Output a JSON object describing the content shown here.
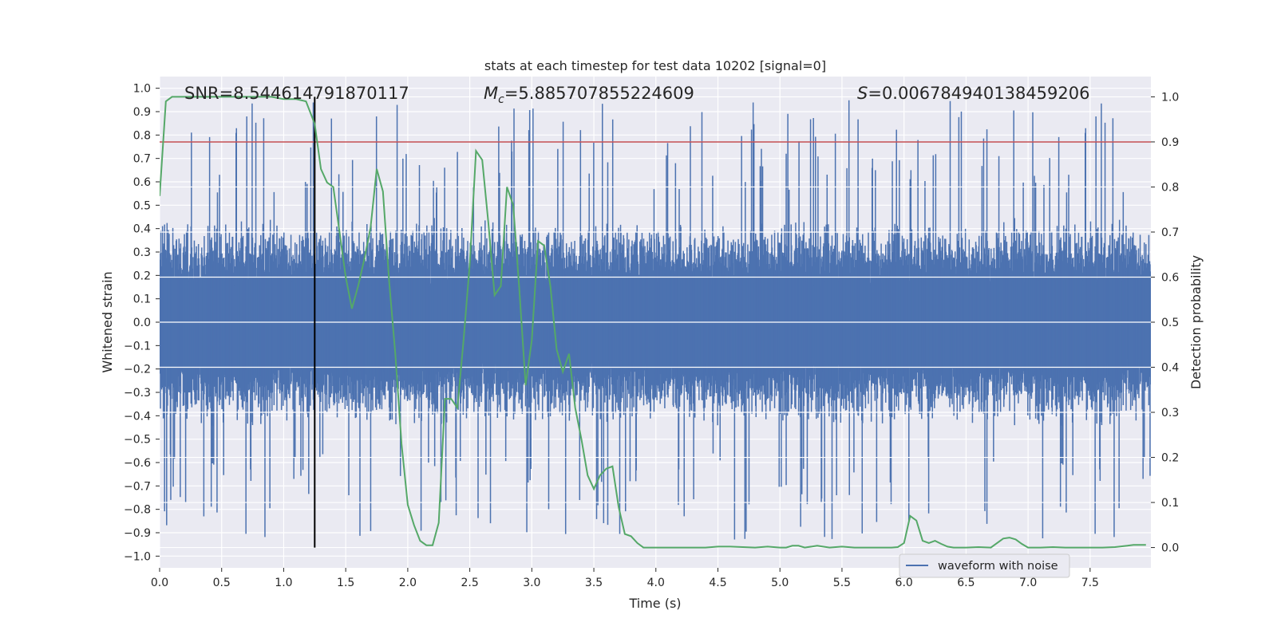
{
  "chart_data": {
    "type": "line",
    "title": "stats at each timestep for test data 10202 [signal=0]",
    "xlabel": "Time (s)",
    "ylabel": "Whitened strain",
    "y2label": "Detection probability",
    "xlim": [
      0,
      7.99
    ],
    "ylim": [
      -1.05,
      1.05
    ],
    "y2lim": [
      -0.045,
      1.045
    ],
    "x_ticks": [
      "0.0",
      "0.5",
      "1.0",
      "1.5",
      "2.0",
      "2.5",
      "3.0",
      "3.5",
      "4.0",
      "4.5",
      "5.0",
      "5.5",
      "6.0",
      "6.5",
      "7.0",
      "7.5"
    ],
    "y_ticks": [
      "1.0",
      "0.9",
      "0.8",
      "0.7",
      "0.6",
      "0.5",
      "0.4",
      "0.3",
      "0.2",
      "0.1",
      "0.0",
      "−0.1",
      "−0.2",
      "−0.3",
      "−0.4",
      "−0.5",
      "−0.6",
      "−0.7",
      "−0.8",
      "−0.9",
      "−1.0"
    ],
    "y2_ticks": [
      "1.0",
      "0.9",
      "0.8",
      "0.7",
      "0.6",
      "0.5",
      "0.4",
      "0.3",
      "0.2",
      "0.1",
      "0.0"
    ],
    "grid": true,
    "legend_position": "lower-right",
    "annotations": {
      "snr": "SNR=8.544614791870117",
      "mc_symbol": "M",
      "mc_sub": "c",
      "mc_value": "=5.885707855224609",
      "s_symbol": "S",
      "s_value": "=0.006784940138459206"
    },
    "threshold": {
      "y2": 0.9,
      "color": "#c44e52"
    },
    "marker_time": 1.25,
    "series": [
      {
        "name": "waveform with noise",
        "role": "whitened strain",
        "color": "#4c72b0",
        "sample_rate_hz": 2048,
        "envelope_approx": {
          "typical_peak": 0.45,
          "max": 1.0,
          "min": -0.94
        }
      },
      {
        "role": "detection probability",
        "color": "#55a868",
        "x": [
          0.0,
          0.05,
          0.1,
          0.15,
          0.2,
          0.3,
          0.5,
          0.7,
          0.9,
          1.0,
          1.1,
          1.18,
          1.25,
          1.3,
          1.35,
          1.4,
          1.45,
          1.5,
          1.55,
          1.6,
          1.65,
          1.7,
          1.75,
          1.8,
          1.85,
          1.9,
          1.95,
          2.0,
          2.05,
          2.1,
          2.15,
          2.2,
          2.25,
          2.3,
          2.35,
          2.4,
          2.45,
          2.5,
          2.55,
          2.6,
          2.65,
          2.7,
          2.75,
          2.8,
          2.85,
          2.9,
          2.95,
          3.0,
          3.05,
          3.1,
          3.15,
          3.2,
          3.25,
          3.3,
          3.35,
          3.4,
          3.45,
          3.5,
          3.55,
          3.6,
          3.65,
          3.7,
          3.75,
          3.8,
          3.85,
          3.9,
          3.95,
          4.0,
          4.1,
          4.2,
          4.3,
          4.4,
          4.5,
          4.6,
          4.7,
          4.8,
          4.9,
          5.0,
          5.05,
          5.1,
          5.15,
          5.2,
          5.3,
          5.4,
          5.5,
          5.6,
          5.7,
          5.8,
          5.9,
          5.95,
          6.0,
          6.05,
          6.1,
          6.15,
          6.2,
          6.25,
          6.3,
          6.35,
          6.4,
          6.45,
          6.5,
          6.6,
          6.7,
          6.8,
          6.85,
          6.9,
          6.95,
          7.0,
          7.1,
          7.2,
          7.3,
          7.4,
          7.5,
          7.6,
          7.7,
          7.8,
          7.85,
          7.9,
          7.95
        ],
        "y": [
          0.78,
          0.99,
          1.0,
          1.0,
          1.0,
          1.0,
          1.0,
          1.0,
          1.0,
          0.995,
          0.995,
          0.99,
          0.94,
          0.84,
          0.81,
          0.8,
          0.7,
          0.6,
          0.53,
          0.58,
          0.64,
          0.71,
          0.84,
          0.79,
          0.59,
          0.43,
          0.23,
          0.095,
          0.05,
          0.015,
          0.005,
          0.005,
          0.055,
          0.33,
          0.33,
          0.31,
          0.46,
          0.63,
          0.88,
          0.86,
          0.72,
          0.56,
          0.58,
          0.8,
          0.76,
          0.57,
          0.36,
          0.46,
          0.68,
          0.67,
          0.58,
          0.44,
          0.39,
          0.43,
          0.31,
          0.24,
          0.16,
          0.13,
          0.16,
          0.175,
          0.18,
          0.09,
          0.03,
          0.025,
          0.01,
          0.0,
          0.0,
          0.0,
          0.0,
          0.0,
          0.0,
          0.0,
          0.002,
          0.002,
          0.001,
          0.0,
          0.002,
          0.0,
          0.0,
          0.004,
          0.004,
          0.0,
          0.004,
          0.0,
          0.002,
          0.0,
          0.0,
          0.0,
          0.0,
          0.001,
          0.01,
          0.07,
          0.06,
          0.015,
          0.01,
          0.015,
          0.008,
          0.002,
          0.0,
          0.0,
          0.0,
          0.001,
          0.0,
          0.02,
          0.022,
          0.018,
          0.008,
          0.0,
          0.0,
          0.001,
          0.0,
          0.0,
          0.0,
          0.0,
          0.001,
          0.004,
          0.006,
          0.006,
          0.006
        ]
      }
    ]
  }
}
